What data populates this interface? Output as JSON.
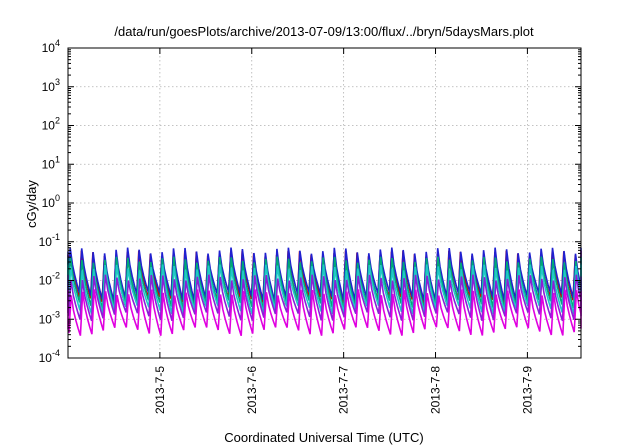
{
  "chart_data": {
    "type": "line",
    "title": "/data/run/goesPlots/archive/2013-07-09/13:00/flux/../bryn/5daysMars.plot",
    "xlabel": "Coordinated Universal Time (UTC)",
    "ylabel": "cGy/day",
    "yscale": "log",
    "ylim": [
      0.0001,
      10000
    ],
    "xlim": [
      "2013-07-04 00:00",
      "2013-07-09 14:00"
    ],
    "grid": true,
    "y_ticks": [
      {
        "base": "10",
        "exp": "4"
      },
      {
        "base": "10",
        "exp": "3"
      },
      {
        "base": "10",
        "exp": "2"
      },
      {
        "base": "10",
        "exp": "1"
      },
      {
        "base": "10",
        "exp": "0"
      },
      {
        "base": "10",
        "exp": "-1"
      },
      {
        "base": "10",
        "exp": "-2"
      },
      {
        "base": "10",
        "exp": "-3"
      },
      {
        "base": "10",
        "exp": "-4"
      }
    ],
    "x_ticks": [
      "2013-7-5",
      "2013-7-6",
      "2013-7-7",
      "2013-7-8",
      "2013-7-9"
    ],
    "pattern": {
      "period_hours": 3,
      "first_peak": "2013-07-04 00:30"
    },
    "series": [
      {
        "color": "#d40000",
        "peak": 0.05,
        "trough": 0.003
      },
      {
        "color": "#2020d0",
        "peak": 0.06,
        "trough": 0.004
      },
      {
        "color": "#00a878",
        "peak": 0.035,
        "trough": 0.0025
      },
      {
        "color": "#20c8c8",
        "peak": 0.022,
        "trough": 0.0018
      },
      {
        "color": "#8a1fd6",
        "peak": 0.012,
        "trough": 0.0012
      },
      {
        "color": "#e000e0",
        "peak": 0.005,
        "trough": 0.0005
      }
    ]
  }
}
